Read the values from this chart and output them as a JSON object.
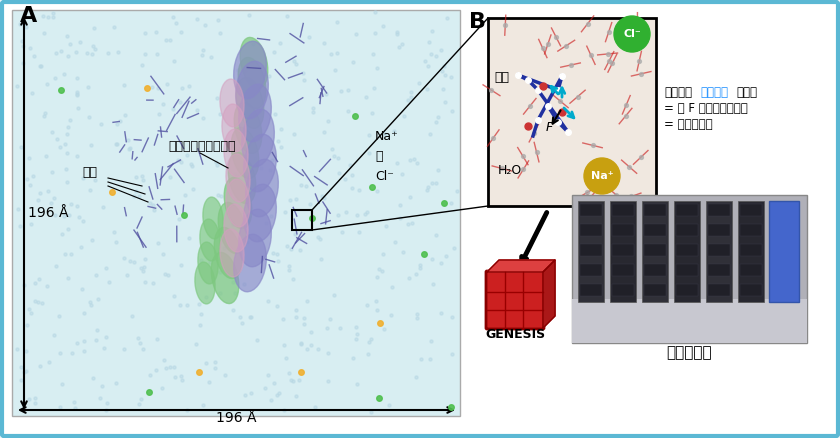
{
  "bg_color": "#e8f4f8",
  "border_color": "#5bb8d4",
  "panel_a_label": "A",
  "panel_b_label": "B",
  "spike_label": "スパイクタンパク質",
  "sugar_label_a": "糖鎖",
  "cl_label": "Cl⁻",
  "water_label": "水",
  "na_label": "Na⁺",
  "dim_196_v": "196 Å",
  "dim_196_h": "196 Å",
  "h2o_label": "H₂O",
  "na_box_label": "Na⁺",
  "cl_box_label": "Cl⁻",
  "sugar_box_label": "糖鎖",
  "f_label": "F",
  "desc_line1_pre": "原子間に",
  "desc_line1_colored": "相互作用",
  "desc_line1_post": "が働く",
  "desc_line2": "= 力 F が原子にかかる",
  "desc_line3": "= 原子が動く",
  "genesis_label": "GENESIS",
  "fugaku_label": "富岳で計算"
}
